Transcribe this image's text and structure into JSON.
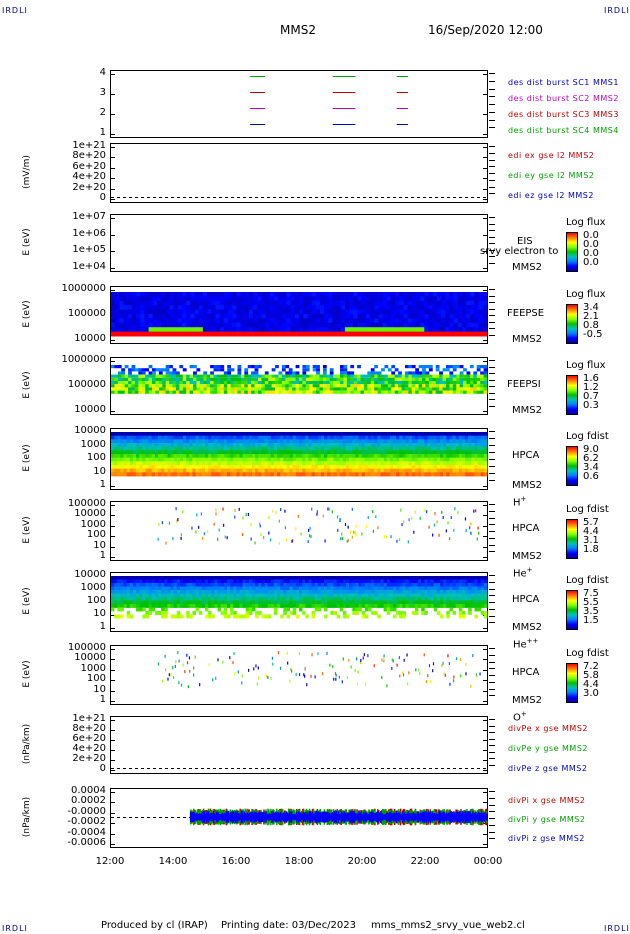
{
  "header": {
    "irap_left": "IRDLI",
    "irap_right": "IRDLI",
    "spacecraft": "MMS2",
    "datetime": "16/Sep/2020 12:00"
  },
  "footer": {
    "produced_by": "Produced by cl (IRAP)",
    "printing_date": "Printing date: 03/Dec/2023",
    "filename": "mms_mms2_srvy_vue_web2.cl",
    "irap_left": "IRDLI",
    "irap_right": "IRDLI"
  },
  "chart_data": {
    "type": "heatmap",
    "x_ticks": [
      "12:00",
      "14:00",
      "16:00",
      "18:00",
      "20:00",
      "22:00",
      "00:00"
    ],
    "panels": [
      {
        "id": "burst",
        "yticks": [
          "4",
          "3",
          "2",
          "1"
        ],
        "ylabel": "",
        "legend": [
          {
            "text": "des dist burst SC1 MMS1",
            "color": "#0000c0"
          },
          {
            "text": "des dist burst SC2 MMS2",
            "color": "#c000c0"
          },
          {
            "text": "des dist burst SC3 MMS3",
            "color": "#c00000"
          },
          {
            "text": "des dist burst SC4 MMS4",
            "color": "#00a000"
          }
        ]
      },
      {
        "id": "edi",
        "yticks": [
          "1e+21",
          "8e+20",
          "6e+20",
          "4e+20",
          "2e+20",
          "0"
        ],
        "ylabel": "(mV/m)",
        "legend": [
          {
            "text": "edi ex gse l2 MMS2",
            "color": "#c00000"
          },
          {
            "text": "edi ey gse l2 MMS2",
            "color": "#00a000"
          },
          {
            "text": "edi ez gse l2 MMS2",
            "color": "#0000c0"
          }
        ]
      },
      {
        "id": "eis",
        "yticks": [
          "1e+07",
          "1e+06",
          "1e+05",
          "1e+04"
        ],
        "ylabel": "E (eV)",
        "instrument": "EIS",
        "overlay": "srvy electron to",
        "sc": "MMS2",
        "cbar_title": "Log flux",
        "cbar_values": [
          "0.0",
          "0.0",
          "0.0",
          "0.0"
        ]
      },
      {
        "id": "feepse",
        "yticks": [
          "1000000",
          "100000",
          "10000"
        ],
        "ylabel": "E (eV)",
        "instrument": "FEEPSE",
        "sc": "MMS2",
        "cbar_title": "Log flux",
        "cbar_values": [
          "3.4",
          "2.1",
          "0.8",
          "-0.5"
        ]
      },
      {
        "id": "feepsi",
        "yticks": [
          "1000000",
          "100000",
          "10000"
        ],
        "ylabel": "E (eV)",
        "instrument": "FEEPSI",
        "sc": "MMS2",
        "cbar_title": "Log flux",
        "cbar_values": [
          "1.6",
          "1.2",
          "0.7",
          "0.3"
        ]
      },
      {
        "id": "hpca_h",
        "yticks": [
          "10000",
          "1000",
          "100",
          "10",
          "1"
        ],
        "ylabel": "E (eV)",
        "instrument": "HPCA",
        "sc": "MMS2",
        "species": "H",
        "species_sup": "+",
        "cbar_title": "Log fdist",
        "cbar_values": [
          "9.0",
          "6.2",
          "3.4",
          "0.6"
        ]
      },
      {
        "id": "hpca_he",
        "yticks": [
          "100000",
          "10000",
          "1000",
          "100",
          "10",
          "1"
        ],
        "ylabel": "E (eV)",
        "instrument": "HPCA",
        "sc": "MMS2",
        "species": "He",
        "species_sup": "+",
        "cbar_title": "Log fdist",
        "cbar_values": [
          "5.7",
          "4.4",
          "3.1",
          "1.8"
        ]
      },
      {
        "id": "hpca_hepp",
        "yticks": [
          "10000",
          "1000",
          "100",
          "10",
          "1"
        ],
        "ylabel": "E (eV)",
        "instrument": "HPCA",
        "sc": "MMS2",
        "species": "He",
        "species_sup": "++",
        "cbar_title": "Log fdist",
        "cbar_values": [
          "7.5",
          "5.5",
          "3.5",
          "1.5"
        ]
      },
      {
        "id": "hpca_o",
        "yticks": [
          "100000",
          "10000",
          "1000",
          "100",
          "10",
          "1"
        ],
        "ylabel": "E (eV)",
        "instrument": "HPCA",
        "sc": "MMS2",
        "species": "O",
        "species_sup": "+",
        "cbar_title": "Log fdist",
        "cbar_values": [
          "7.2",
          "5.8",
          "4.4",
          "3.0"
        ]
      },
      {
        "id": "divpe",
        "yticks": [
          "1e+21",
          "8e+20",
          "6e+20",
          "4e+20",
          "2e+20",
          "0"
        ],
        "ylabel": "(nPa/km)",
        "legend": [
          {
            "text": "divPe x gse MMS2",
            "color": "#c00000"
          },
          {
            "text": "divPe y gse MMS2",
            "color": "#00a000"
          },
          {
            "text": "divPe z gse MMS2",
            "color": "#0000c0"
          }
        ]
      },
      {
        "id": "divpi",
        "yticks": [
          "0.0004",
          "0.0002",
          "-0.0000",
          "-0.0002",
          "-0.0004",
          "-0.0006"
        ],
        "ylabel": "(nPa/km)",
        "legend": [
          {
            "text": "divPi x gse MMS2",
            "color": "#c00000"
          },
          {
            "text": "divPi y gse MMS2",
            "color": "#00a000"
          },
          {
            "text": "divPi z gse MMS2",
            "color": "#0000c0"
          }
        ]
      }
    ]
  }
}
